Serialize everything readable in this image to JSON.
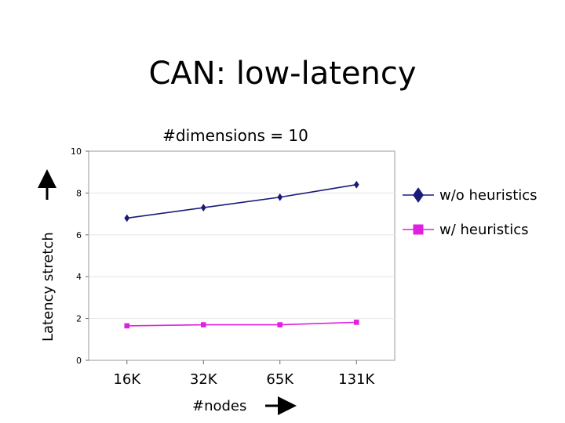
{
  "slide": {
    "title": "CAN: low-latency"
  },
  "chart_data": {
    "type": "line",
    "title": "#dimensions = 10",
    "xlabel": "#nodes",
    "ylabel": "Latency stretch",
    "categories": [
      "16K",
      "32K",
      "65K",
      "131K"
    ],
    "ylim": [
      0,
      10
    ],
    "yticks": [
      0,
      2,
      4,
      6,
      8,
      10
    ],
    "grid": true,
    "legend_position": "right",
    "series": [
      {
        "name": "w/o heuristics",
        "values": [
          6.8,
          7.3,
          7.8,
          8.4
        ],
        "color": "#1a1a7a",
        "marker": "diamond"
      },
      {
        "name": "w/ heuristics",
        "values": [
          1.65,
          1.7,
          1.7,
          1.82
        ],
        "color": "#e020e0",
        "marker": "square"
      }
    ]
  }
}
